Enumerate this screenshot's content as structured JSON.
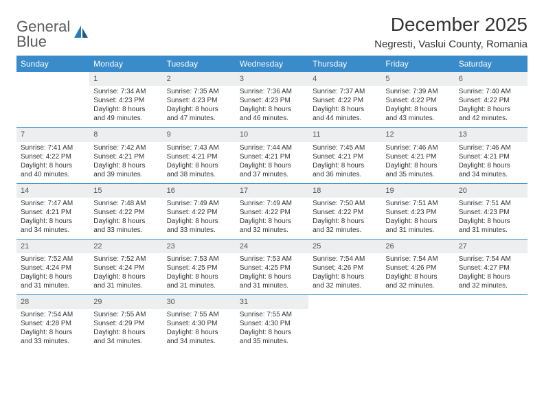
{
  "brand": {
    "part1": "General",
    "part2": "Blue"
  },
  "title": "December 2025",
  "location": "Negresti, Vaslui County, Romania",
  "colors": {
    "header_bg": "#3a8bc9",
    "header_text": "#ffffff",
    "daynum_bg": "#eceeef",
    "rule": "#3a8bc9",
    "brand_gray": "#5a5a5a",
    "brand_blue": "#2a7ab9"
  },
  "weekdays": [
    "Sunday",
    "Monday",
    "Tuesday",
    "Wednesday",
    "Thursday",
    "Friday",
    "Saturday"
  ],
  "weeks": [
    [
      null,
      {
        "n": "1",
        "sr": "Sunrise: 7:34 AM",
        "ss": "Sunset: 4:23 PM",
        "dl": "Daylight: 8 hours and 49 minutes."
      },
      {
        "n": "2",
        "sr": "Sunrise: 7:35 AM",
        "ss": "Sunset: 4:23 PM",
        "dl": "Daylight: 8 hours and 47 minutes."
      },
      {
        "n": "3",
        "sr": "Sunrise: 7:36 AM",
        "ss": "Sunset: 4:23 PM",
        "dl": "Daylight: 8 hours and 46 minutes."
      },
      {
        "n": "4",
        "sr": "Sunrise: 7:37 AM",
        "ss": "Sunset: 4:22 PM",
        "dl": "Daylight: 8 hours and 44 minutes."
      },
      {
        "n": "5",
        "sr": "Sunrise: 7:39 AM",
        "ss": "Sunset: 4:22 PM",
        "dl": "Daylight: 8 hours and 43 minutes."
      },
      {
        "n": "6",
        "sr": "Sunrise: 7:40 AM",
        "ss": "Sunset: 4:22 PM",
        "dl": "Daylight: 8 hours and 42 minutes."
      }
    ],
    [
      {
        "n": "7",
        "sr": "Sunrise: 7:41 AM",
        "ss": "Sunset: 4:22 PM",
        "dl": "Daylight: 8 hours and 40 minutes."
      },
      {
        "n": "8",
        "sr": "Sunrise: 7:42 AM",
        "ss": "Sunset: 4:21 PM",
        "dl": "Daylight: 8 hours and 39 minutes."
      },
      {
        "n": "9",
        "sr": "Sunrise: 7:43 AM",
        "ss": "Sunset: 4:21 PM",
        "dl": "Daylight: 8 hours and 38 minutes."
      },
      {
        "n": "10",
        "sr": "Sunrise: 7:44 AM",
        "ss": "Sunset: 4:21 PM",
        "dl": "Daylight: 8 hours and 37 minutes."
      },
      {
        "n": "11",
        "sr": "Sunrise: 7:45 AM",
        "ss": "Sunset: 4:21 PM",
        "dl": "Daylight: 8 hours and 36 minutes."
      },
      {
        "n": "12",
        "sr": "Sunrise: 7:46 AM",
        "ss": "Sunset: 4:21 PM",
        "dl": "Daylight: 8 hours and 35 minutes."
      },
      {
        "n": "13",
        "sr": "Sunrise: 7:46 AM",
        "ss": "Sunset: 4:21 PM",
        "dl": "Daylight: 8 hours and 34 minutes."
      }
    ],
    [
      {
        "n": "14",
        "sr": "Sunrise: 7:47 AM",
        "ss": "Sunset: 4:21 PM",
        "dl": "Daylight: 8 hours and 34 minutes."
      },
      {
        "n": "15",
        "sr": "Sunrise: 7:48 AM",
        "ss": "Sunset: 4:22 PM",
        "dl": "Daylight: 8 hours and 33 minutes."
      },
      {
        "n": "16",
        "sr": "Sunrise: 7:49 AM",
        "ss": "Sunset: 4:22 PM",
        "dl": "Daylight: 8 hours and 33 minutes."
      },
      {
        "n": "17",
        "sr": "Sunrise: 7:49 AM",
        "ss": "Sunset: 4:22 PM",
        "dl": "Daylight: 8 hours and 32 minutes."
      },
      {
        "n": "18",
        "sr": "Sunrise: 7:50 AM",
        "ss": "Sunset: 4:22 PM",
        "dl": "Daylight: 8 hours and 32 minutes."
      },
      {
        "n": "19",
        "sr": "Sunrise: 7:51 AM",
        "ss": "Sunset: 4:23 PM",
        "dl": "Daylight: 8 hours and 31 minutes."
      },
      {
        "n": "20",
        "sr": "Sunrise: 7:51 AM",
        "ss": "Sunset: 4:23 PM",
        "dl": "Daylight: 8 hours and 31 minutes."
      }
    ],
    [
      {
        "n": "21",
        "sr": "Sunrise: 7:52 AM",
        "ss": "Sunset: 4:24 PM",
        "dl": "Daylight: 8 hours and 31 minutes."
      },
      {
        "n": "22",
        "sr": "Sunrise: 7:52 AM",
        "ss": "Sunset: 4:24 PM",
        "dl": "Daylight: 8 hours and 31 minutes."
      },
      {
        "n": "23",
        "sr": "Sunrise: 7:53 AM",
        "ss": "Sunset: 4:25 PM",
        "dl": "Daylight: 8 hours and 31 minutes."
      },
      {
        "n": "24",
        "sr": "Sunrise: 7:53 AM",
        "ss": "Sunset: 4:25 PM",
        "dl": "Daylight: 8 hours and 31 minutes."
      },
      {
        "n": "25",
        "sr": "Sunrise: 7:54 AM",
        "ss": "Sunset: 4:26 PM",
        "dl": "Daylight: 8 hours and 32 minutes."
      },
      {
        "n": "26",
        "sr": "Sunrise: 7:54 AM",
        "ss": "Sunset: 4:26 PM",
        "dl": "Daylight: 8 hours and 32 minutes."
      },
      {
        "n": "27",
        "sr": "Sunrise: 7:54 AM",
        "ss": "Sunset: 4:27 PM",
        "dl": "Daylight: 8 hours and 32 minutes."
      }
    ],
    [
      {
        "n": "28",
        "sr": "Sunrise: 7:54 AM",
        "ss": "Sunset: 4:28 PM",
        "dl": "Daylight: 8 hours and 33 minutes."
      },
      {
        "n": "29",
        "sr": "Sunrise: 7:55 AM",
        "ss": "Sunset: 4:29 PM",
        "dl": "Daylight: 8 hours and 34 minutes."
      },
      {
        "n": "30",
        "sr": "Sunrise: 7:55 AM",
        "ss": "Sunset: 4:30 PM",
        "dl": "Daylight: 8 hours and 34 minutes."
      },
      {
        "n": "31",
        "sr": "Sunrise: 7:55 AM",
        "ss": "Sunset: 4:30 PM",
        "dl": "Daylight: 8 hours and 35 minutes."
      },
      null,
      null,
      null
    ]
  ]
}
